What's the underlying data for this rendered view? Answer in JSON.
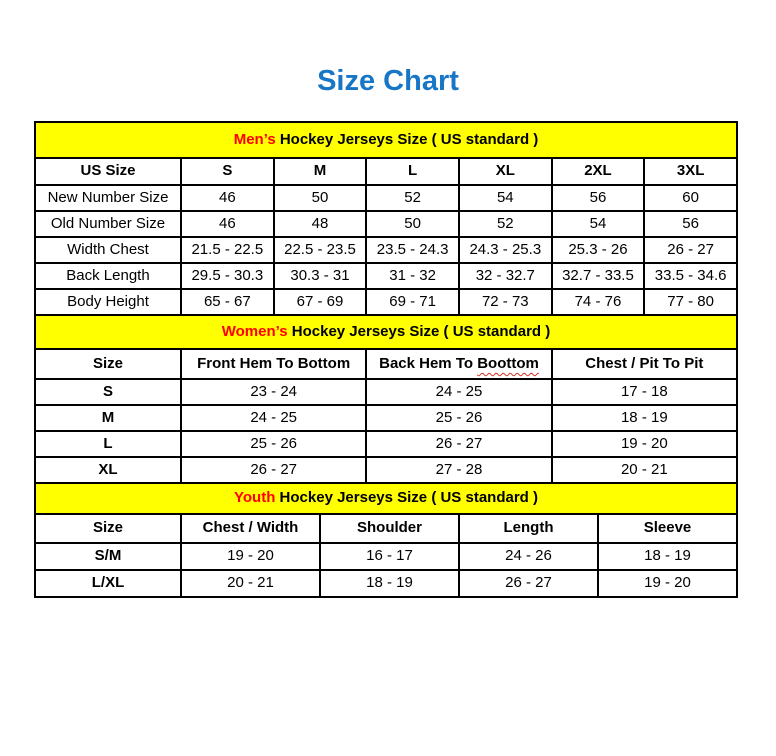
{
  "page": {
    "title": "Size Chart"
  },
  "colors": {
    "title_blue": "#1776C5",
    "header_yellow": "#FFFF00",
    "accent_red": "#FF0000",
    "line": "#000000",
    "squiggle_red": "#D93025"
  },
  "chart_data": [
    {
      "type": "table",
      "title": "Men’s Hockey Jerseys Size ( US standard )",
      "title_accent": "Men’s",
      "title_rest": " Hockey Jerseys Size ( US standard )",
      "columns": [
        "US Size",
        "S",
        "M",
        "L",
        "XL",
        "2XL",
        "3XL"
      ],
      "rows": [
        {
          "label": "New Number Size",
          "values": [
            "46",
            "50",
            "52",
            "54",
            "56",
            "60"
          ]
        },
        {
          "label": "Old Number Size",
          "values": [
            "46",
            "48",
            "50",
            "52",
            "54",
            "56"
          ]
        },
        {
          "label": "Width Chest",
          "values": [
            "21.5 - 22.5",
            "22.5 - 23.5",
            "23.5 - 24.3",
            "24.3 - 25.3",
            "25.3 - 26",
            "26 - 27"
          ]
        },
        {
          "label": "Back Length",
          "values": [
            "29.5 - 30.3",
            "30.3 - 31",
            "31 - 32",
            "32 - 32.7",
            "32.7 - 33.5",
            "33.5 - 34.6"
          ]
        },
        {
          "label": "Body Height",
          "values": [
            "65 - 67",
            "67 - 69",
            "69 - 71",
            "72 - 73",
            "74 - 76",
            "77 - 80"
          ]
        }
      ]
    },
    {
      "type": "table",
      "title": "Women’s Hockey Jerseys Size ( US standard )",
      "title_accent": "Women’s",
      "title_rest": " Hockey Jerseys Size ( US standard )",
      "columns": [
        "Size",
        "Front Hem To Bottom",
        "Back Hem To Boottom",
        "Chest / Pit To Pit"
      ],
      "column2_parts": {
        "prefix": "Back Hem To ",
        "misspelled_word": "Boottom"
      },
      "rows": [
        {
          "label": "S",
          "values": [
            "23 - 24",
            "24 - 25",
            "17 - 18"
          ]
        },
        {
          "label": "M",
          "values": [
            "24 - 25",
            "25 - 26",
            "18 - 19"
          ]
        },
        {
          "label": "L",
          "values": [
            "25 - 26",
            "26 - 27",
            "19 - 20"
          ]
        },
        {
          "label": "XL",
          "values": [
            "26 - 27",
            "27 - 28",
            "20 - 21"
          ]
        }
      ]
    },
    {
      "type": "table",
      "title": "Youth Hockey Jerseys Size ( US standard )",
      "title_accent": "Youth",
      "title_rest": " Hockey Jerseys Size ( US standard )",
      "columns": [
        "Size",
        "Chest / Width",
        "Shoulder",
        "Length",
        "Sleeve"
      ],
      "rows": [
        {
          "label": "S/M",
          "values": [
            "19 - 20",
            "16 - 17",
            "24 - 26",
            "18 - 19"
          ]
        },
        {
          "label": "L/XL",
          "values": [
            "20 - 21",
            "18 - 19",
            "26 - 27",
            "19 - 20"
          ]
        }
      ]
    }
  ]
}
